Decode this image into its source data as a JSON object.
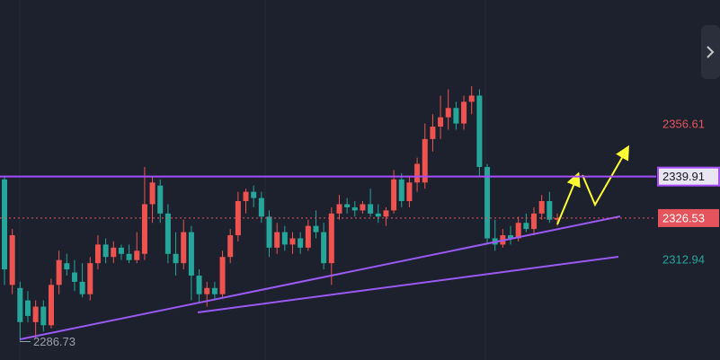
{
  "chart_data": {
    "type": "candlestick",
    "ylim": [
      2280.8,
      2396.8
    ],
    "yticks": [
      2356.61,
      2312.94
    ],
    "up_color": "#ef5350",
    "down_color": "#26a69a",
    "candles": [
      {
        "o": 2339,
        "h": 2340,
        "l": 2305,
        "c": 2310
      },
      {
        "o": 2305,
        "h": 2323,
        "l": 2302,
        "c": 2321
      },
      {
        "o": 2304,
        "h": 2306,
        "l": 2287,
        "c": 2293
      },
      {
        "o": 2300,
        "h": 2303,
        "l": 2293,
        "c": 2295
      },
      {
        "o": 2293,
        "h": 2300,
        "l": 2288,
        "c": 2298
      },
      {
        "o": 2298,
        "h": 2300,
        "l": 2290,
        "c": 2292
      },
      {
        "o": 2292,
        "h": 2307,
        "l": 2291,
        "c": 2305
      },
      {
        "o": 2305,
        "h": 2316,
        "l": 2302,
        "c": 2313
      },
      {
        "o": 2312,
        "h": 2315,
        "l": 2308,
        "c": 2310
      },
      {
        "o": 2309,
        "h": 2313,
        "l": 2303,
        "c": 2306
      },
      {
        "o": 2306,
        "h": 2312,
        "l": 2301,
        "c": 2302
      },
      {
        "o": 2302,
        "h": 2314,
        "l": 2300,
        "c": 2312
      },
      {
        "o": 2312,
        "h": 2321,
        "l": 2310,
        "c": 2318
      },
      {
        "o": 2318,
        "h": 2320,
        "l": 2312,
        "c": 2314
      },
      {
        "o": 2314,
        "h": 2319,
        "l": 2312,
        "c": 2317
      },
      {
        "o": 2317,
        "h": 2318,
        "l": 2313,
        "c": 2315
      },
      {
        "o": 2315,
        "h": 2318,
        "l": 2312,
        "c": 2313
      },
      {
        "o": 2313,
        "h": 2322,
        "l": 2312,
        "c": 2316
      },
      {
        "o": 2315,
        "h": 2343,
        "l": 2313,
        "c": 2331
      },
      {
        "o": 2331,
        "h": 2340,
        "l": 2325,
        "c": 2338
      },
      {
        "o": 2337,
        "h": 2339,
        "l": 2325,
        "c": 2328
      },
      {
        "o": 2328,
        "h": 2331,
        "l": 2312,
        "c": 2315
      },
      {
        "o": 2315,
        "h": 2322,
        "l": 2308,
        "c": 2312
      },
      {
        "o": 2312,
        "h": 2326,
        "l": 2310,
        "c": 2322
      },
      {
        "o": 2322,
        "h": 2324,
        "l": 2300,
        "c": 2308
      },
      {
        "o": 2308,
        "h": 2310,
        "l": 2299,
        "c": 2302
      },
      {
        "o": 2302,
        "h": 2306,
        "l": 2298,
        "c": 2304
      },
      {
        "o": 2304,
        "h": 2306,
        "l": 2300,
        "c": 2302
      },
      {
        "o": 2302,
        "h": 2316,
        "l": 2301,
        "c": 2314
      },
      {
        "o": 2314,
        "h": 2323,
        "l": 2312,
        "c": 2321
      },
      {
        "o": 2321,
        "h": 2335,
        "l": 2319,
        "c": 2332
      },
      {
        "o": 2332,
        "h": 2336,
        "l": 2328,
        "c": 2335
      },
      {
        "o": 2335,
        "h": 2337,
        "l": 2330,
        "c": 2333
      },
      {
        "o": 2333,
        "h": 2335,
        "l": 2325,
        "c": 2327
      },
      {
        "o": 2327,
        "h": 2329,
        "l": 2314,
        "c": 2317
      },
      {
        "o": 2317,
        "h": 2325,
        "l": 2315,
        "c": 2322
      },
      {
        "o": 2322,
        "h": 2324,
        "l": 2316,
        "c": 2318
      },
      {
        "o": 2318,
        "h": 2322,
        "l": 2315,
        "c": 2320
      },
      {
        "o": 2320,
        "h": 2322,
        "l": 2315,
        "c": 2317
      },
      {
        "o": 2317,
        "h": 2326,
        "l": 2316,
        "c": 2324
      },
      {
        "o": 2324,
        "h": 2329,
        "l": 2320,
        "c": 2322
      },
      {
        "o": 2322,
        "h": 2325,
        "l": 2310,
        "c": 2312
      },
      {
        "o": 2312,
        "h": 2330,
        "l": 2305,
        "c": 2328
      },
      {
        "o": 2328,
        "h": 2334,
        "l": 2326,
        "c": 2331
      },
      {
        "o": 2331,
        "h": 2333,
        "l": 2328,
        "c": 2330
      },
      {
        "o": 2330,
        "h": 2332,
        "l": 2327,
        "c": 2329
      },
      {
        "o": 2329,
        "h": 2332,
        "l": 2328,
        "c": 2331
      },
      {
        "o": 2331,
        "h": 2336,
        "l": 2327,
        "c": 2328
      },
      {
        "o": 2328,
        "h": 2331,
        "l": 2325,
        "c": 2327
      },
      {
        "o": 2327,
        "h": 2330,
        "l": 2324,
        "c": 2329
      },
      {
        "o": 2329,
        "h": 2342,
        "l": 2328,
        "c": 2339
      },
      {
        "o": 2339,
        "h": 2341,
        "l": 2330,
        "c": 2332
      },
      {
        "o": 2332,
        "h": 2340,
        "l": 2330,
        "c": 2338
      },
      {
        "o": 2338,
        "h": 2346,
        "l": 2335,
        "c": 2344
      },
      {
        "o": 2338,
        "h": 2357,
        "l": 2336,
        "c": 2352
      },
      {
        "o": 2352,
        "h": 2360,
        "l": 2348,
        "c": 2356
      },
      {
        "o": 2356,
        "h": 2366,
        "l": 2352,
        "c": 2359
      },
      {
        "o": 2359,
        "h": 2368,
        "l": 2355,
        "c": 2362
      },
      {
        "o": 2362,
        "h": 2364,
        "l": 2355,
        "c": 2357
      },
      {
        "o": 2357,
        "h": 2366,
        "l": 2355,
        "c": 2364
      },
      {
        "o": 2364,
        "h": 2369,
        "l": 2360,
        "c": 2366
      },
      {
        "o": 2366,
        "h": 2368,
        "l": 2340,
        "c": 2343
      },
      {
        "o": 2343,
        "h": 2344,
        "l": 2318,
        "c": 2320
      },
      {
        "o": 2320,
        "h": 2326,
        "l": 2316,
        "c": 2318
      },
      {
        "o": 2318,
        "h": 2323,
        "l": 2317,
        "c": 2321
      },
      {
        "o": 2321,
        "h": 2324,
        "l": 2318,
        "c": 2320
      },
      {
        "o": 2320,
        "h": 2327,
        "l": 2319,
        "c": 2325
      },
      {
        "o": 2325,
        "h": 2328,
        "l": 2322,
        "c": 2323
      },
      {
        "o": 2323,
        "h": 2330,
        "l": 2321,
        "c": 2328
      },
      {
        "o": 2328,
        "h": 2334,
        "l": 2326,
        "c": 2332
      },
      {
        "o": 2332,
        "h": 2335,
        "l": 2325,
        "c": 2326
      },
      {
        "o": 2326,
        "h": 2328,
        "l": 2324,
        "c": 2326.53
      }
    ],
    "resistance_line": {
      "value": 2339.91,
      "color": "#a64dff"
    },
    "last_price_line": {
      "value": 2326.53,
      "color": "#e5545d"
    },
    "low_label": {
      "value": 2286.73
    }
  }
}
